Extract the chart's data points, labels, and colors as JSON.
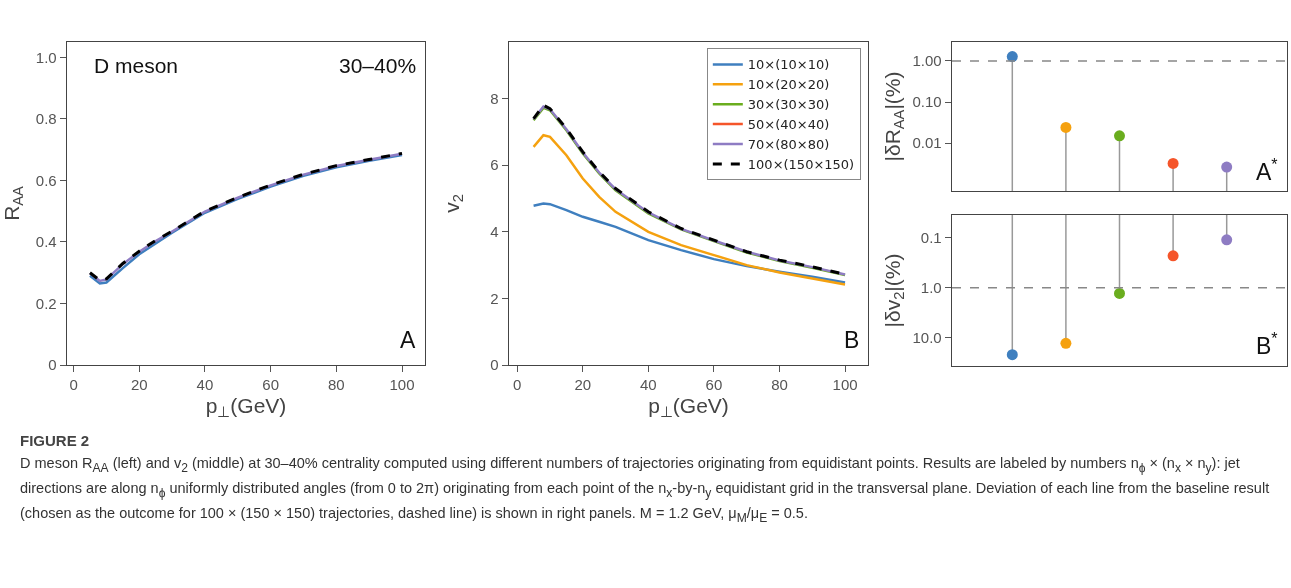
{
  "chart_data": [
    {
      "type": "line",
      "xlabel": "p$_{⊥}$(GeV)",
      "ylabel": "R$_{AA}$",
      "x": [
        5,
        8,
        10,
        15,
        20,
        25,
        30,
        40,
        50,
        60,
        70,
        80,
        90,
        100
      ],
      "xlim": [
        -2,
        107
      ],
      "ylim": [
        0,
        1.05
      ],
      "xticks": [
        0,
        20,
        40,
        60,
        80,
        100
      ],
      "yticks": [
        0,
        0.2,
        0.4,
        0.6,
        0.8,
        {
          "value": 1,
          "label": "1.0"
        }
      ],
      "annotations": [
        "D meson",
        "30–40%",
        "A"
      ],
      "series": [
        {
          "color": "#3f7fbf",
          "values": [
            0.29,
            0.265,
            0.268,
            0.315,
            0.36,
            0.395,
            0.43,
            0.495,
            0.54,
            0.58,
            0.615,
            0.643,
            0.664,
            0.683
          ]
        },
        {
          "color": "#8e7cc3",
          "values": [
            0.298,
            0.273,
            0.278,
            0.328,
            0.368,
            0.403,
            0.434,
            0.499,
            0.544,
            0.584,
            0.619,
            0.647,
            0.667,
            0.687
          ]
        },
        {
          "color": "#000000",
          "line_style": "dashed",
          "values": [
            0.3,
            0.275,
            0.28,
            0.33,
            0.37,
            0.405,
            0.435,
            0.5,
            0.545,
            0.585,
            0.62,
            0.648,
            0.668,
            0.688
          ]
        }
      ]
    },
    {
      "type": "line",
      "xlabel": "p$_{⊥}$(GeV)",
      "ylabel": "v$_{2}$",
      "x": [
        5,
        8,
        10,
        15,
        20,
        25,
        30,
        40,
        50,
        60,
        70,
        80,
        90,
        100
      ],
      "xlim": [
        -2.5,
        107
      ],
      "ylim": [
        0,
        9.7
      ],
      "xticks": [
        0,
        20,
        40,
        60,
        80,
        100
      ],
      "yticks": [
        0,
        2,
        4,
        6,
        8
      ],
      "legend": "top right",
      "annotations": [
        "B"
      ],
      "series": [
        {
          "name": "10×(10×10)",
          "color": "#3f7fbf",
          "values": [
            4.78,
            4.85,
            4.83,
            4.65,
            4.45,
            4.3,
            4.15,
            3.75,
            3.45,
            3.18,
            2.97,
            2.8,
            2.65,
            2.48
          ]
        },
        {
          "name": "10×(20×20)",
          "color": "#f5a10f",
          "values": [
            6.55,
            6.9,
            6.85,
            6.3,
            5.6,
            5.05,
            4.6,
            4.0,
            3.6,
            3.3,
            3.0,
            2.78,
            2.6,
            2.42
          ]
        },
        {
          "name": "30×(30×30)",
          "color": "#6aad1e",
          "values": [
            7.35,
            7.72,
            7.65,
            7.05,
            6.35,
            5.75,
            5.25,
            4.55,
            4.07,
            3.72,
            3.38,
            3.12,
            2.92,
            2.7
          ]
        },
        {
          "name": "50×(40×40)",
          "color": "#f5552a",
          "values": [
            null,
            null,
            null,
            null,
            null,
            null,
            null,
            null,
            null,
            null,
            null,
            null,
            null,
            null
          ]
        },
        {
          "name": "70×(80×80)",
          "color": "#8e7cc3",
          "values": [
            7.38,
            7.76,
            7.68,
            7.08,
            6.38,
            5.78,
            5.28,
            4.58,
            4.09,
            3.74,
            3.4,
            3.14,
            2.94,
            2.72
          ]
        },
        {
          "name": "100×(150×150)",
          "color": "#000000",
          "line_style": "dashed",
          "values": [
            7.4,
            7.8,
            7.7,
            7.1,
            6.4,
            5.8,
            5.3,
            4.6,
            4.1,
            3.75,
            3.4,
            3.15,
            2.95,
            2.72
          ]
        }
      ]
    },
    {
      "type": "lollipop",
      "ylabel": "|δR$_{AA}$|(%)",
      "categories": [
        null,
        null,
        null,
        null,
        null
      ],
      "log": true,
      "ylim": [
        0.00068,
        2.9
      ],
      "yticks": [
        {
          "value": 0.01,
          "label": "0.01"
        },
        {
          "value": 0.1,
          "label": "0.10"
        },
        {
          "value": 1,
          "label": "1.00"
        }
      ],
      "tick_labels": "y",
      "marker": "circle",
      "annotations": [
        "A$^{*}$"
      ],
      "ref_lines": [
        {
          "axis": "y",
          "value": 1,
          "line_style": "dashed",
          "color": "#888888"
        }
      ],
      "values": [
        1.28,
        0.024,
        0.015,
        0.0032,
        0.0026
      ],
      "colors": [
        "#3f7fbf",
        "#f5a10f",
        "#6aad1e",
        "#f5552a",
        "#8e7cc3"
      ]
    },
    {
      "type": "lollipop",
      "ylabel": "|δv$_{2}$|(%)",
      "categories": [
        null,
        null,
        null,
        null,
        null
      ],
      "log": true,
      "ylim": [
        37,
        0.035
      ],
      "yticks": [
        {
          "value": 0.1,
          "label": "0.1"
        },
        {
          "value": 1,
          "label": "1.0"
        },
        {
          "value": 10,
          "label": "10.0"
        }
      ],
      "tick_labels": "y",
      "marker": "circle",
      "annotations": [
        "B$^{*}$"
      ],
      "ref_lines": [
        {
          "axis": "y",
          "value": 1,
          "line_style": "dashed",
          "color": "#888888"
        }
      ],
      "values": [
        22,
        13,
        1.3,
        0.23,
        0.11
      ],
      "colors": [
        "#3f7fbf",
        "#f5a10f",
        "#6aad1e",
        "#f5552a",
        "#8e7cc3"
      ]
    },
    {
      "type": "other",
      "title": "FIGURE 2",
      "annotations": [
        "D meson R$_{AA}$ (left) and v$_{2}$ (middle) at 30–40% centrality computed using different numbers of trajectories originating from equidistant points. Results are labeled by numbers n$_{ϕ}$ × (n$_{x}$ × n$_{y}$): jet directions are along n$_{ϕ}$ uniformly distributed angles (from 0 to 2π) originating from each point of the n$_{x}$-by-n$_{y}$ equidistant grid in the transversal plane. Deviation of each line from the baseline result (chosen as the outcome for 100 × (150 × 150) trajectories, dashed line) is shown in right panels. M = 1.2 GeV, μ$_{M}$/μ$_{E}$ = 0.5."
      ]
    }
  ]
}
